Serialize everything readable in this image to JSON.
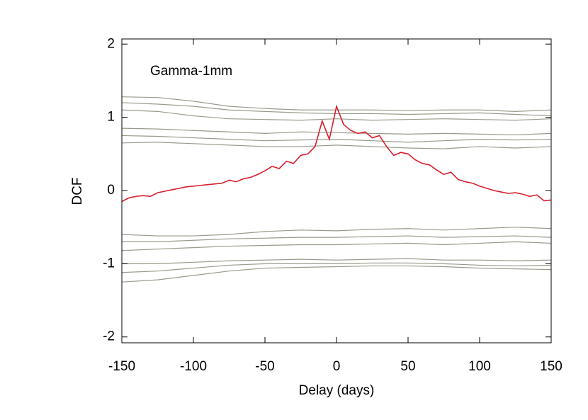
{
  "chart_data": {
    "type": "line",
    "annotation": "Gamma-1mm",
    "xlabel": "Delay (days)",
    "ylabel": "DCF",
    "xlim": [
      -150,
      150
    ],
    "ylim": [
      -2.08,
      2.07
    ],
    "xticks": [
      -150,
      -100,
      -50,
      0,
      50,
      100,
      150
    ],
    "yticks": [
      -2,
      -1,
      0,
      1,
      2
    ],
    "series": [
      {
        "color": "#9a9a8c",
        "x": [
          -150,
          -125,
          -100,
          -75,
          -50,
          -25,
          0,
          25,
          50,
          75,
          100,
          125,
          150
        ],
        "values": [
          1.28,
          1.27,
          1.22,
          1.15,
          1.12,
          1.1,
          1.1,
          1.1,
          1.09,
          1.1,
          1.1,
          1.08,
          1.1
        ]
      },
      {
        "color": "#9a9a8c",
        "x": [
          -150,
          -125,
          -100,
          -75,
          -50,
          -25,
          0,
          25,
          50,
          75,
          100,
          125,
          150
        ],
        "values": [
          1.2,
          1.18,
          1.15,
          1.1,
          1.08,
          1.06,
          1.05,
          1.05,
          1.04,
          1.05,
          1.06,
          1.04,
          1.02
        ]
      },
      {
        "color": "#9a9a8c",
        "x": [
          -150,
          -125,
          -100,
          -75,
          -50,
          -25,
          0,
          25,
          50,
          75,
          100,
          125,
          150
        ],
        "values": [
          1.1,
          1.08,
          1.02,
          0.98,
          0.97,
          0.96,
          0.98,
          0.96,
          0.97,
          0.98,
          0.97,
          0.96,
          0.98
        ]
      },
      {
        "color": "#9a9a8c",
        "x": [
          -150,
          -125,
          -100,
          -75,
          -50,
          -25,
          0,
          25,
          50,
          75,
          100,
          125,
          150
        ],
        "values": [
          0.85,
          0.84,
          0.82,
          0.8,
          0.78,
          0.8,
          0.79,
          0.78,
          0.77,
          0.78,
          0.77,
          0.76,
          0.78
        ]
      },
      {
        "color": "#9a9a8c",
        "x": [
          -150,
          -125,
          -100,
          -75,
          -50,
          -25,
          0,
          25,
          50,
          75,
          100,
          125,
          150
        ],
        "values": [
          0.75,
          0.74,
          0.72,
          0.7,
          0.68,
          0.69,
          0.7,
          0.68,
          0.66,
          0.68,
          0.7,
          0.69,
          0.7
        ]
      },
      {
        "color": "#9a9a8c",
        "x": [
          -150,
          -125,
          -100,
          -75,
          -50,
          -25,
          0,
          25,
          50,
          75,
          100,
          125,
          150
        ],
        "values": [
          0.65,
          0.66,
          0.64,
          0.62,
          0.6,
          0.6,
          0.62,
          0.6,
          0.58,
          0.57,
          0.6,
          0.58,
          0.6
        ]
      },
      {
        "color": "#9a9a8c",
        "x": [
          -150,
          -125,
          -100,
          -75,
          -50,
          -25,
          0,
          25,
          50,
          75,
          100,
          125,
          150
        ],
        "values": [
          -0.6,
          -0.62,
          -0.62,
          -0.6,
          -0.56,
          -0.54,
          -0.55,
          -0.53,
          -0.52,
          -0.54,
          -0.52,
          -0.5,
          -0.52
        ]
      },
      {
        "color": "#9a9a8c",
        "x": [
          -150,
          -125,
          -100,
          -75,
          -50,
          -25,
          0,
          25,
          50,
          75,
          100,
          125,
          150
        ],
        "values": [
          -0.7,
          -0.7,
          -0.68,
          -0.66,
          -0.65,
          -0.64,
          -0.64,
          -0.63,
          -0.62,
          -0.64,
          -0.63,
          -0.62,
          -0.64
        ]
      },
      {
        "color": "#9a9a8c",
        "x": [
          -150,
          -125,
          -100,
          -75,
          -50,
          -25,
          0,
          25,
          50,
          75,
          100,
          125,
          150
        ],
        "values": [
          -0.82,
          -0.8,
          -0.78,
          -0.76,
          -0.75,
          -0.74,
          -0.74,
          -0.73,
          -0.72,
          -0.74,
          -0.72,
          -0.7,
          -0.72
        ]
      },
      {
        "color": "#9a9a8c",
        "x": [
          -150,
          -125,
          -100,
          -75,
          -50,
          -25,
          0,
          25,
          50,
          75,
          100,
          125,
          150
        ],
        "values": [
          -1.0,
          -1.0,
          -0.98,
          -0.96,
          -0.95,
          -0.94,
          -0.95,
          -0.94,
          -0.93,
          -0.95,
          -0.95,
          -0.96,
          -0.95
        ]
      },
      {
        "color": "#9a9a8c",
        "x": [
          -150,
          -125,
          -100,
          -75,
          -50,
          -25,
          0,
          25,
          50,
          75,
          100,
          125,
          150
        ],
        "values": [
          -1.12,
          -1.1,
          -1.06,
          -1.02,
          -1.0,
          -1.0,
          -1.0,
          -0.99,
          -0.99,
          -1.0,
          -1.02,
          -1.03,
          -1.02
        ]
      },
      {
        "color": "#9a9a8c",
        "x": [
          -150,
          -125,
          -100,
          -75,
          -50,
          -25,
          0,
          25,
          50,
          75,
          100,
          125,
          150
        ],
        "values": [
          -1.25,
          -1.22,
          -1.16,
          -1.1,
          -1.06,
          -1.05,
          -1.04,
          -1.03,
          -1.03,
          -1.04,
          -1.06,
          -1.07,
          -1.08
        ]
      },
      {
        "color": "#d81e2c",
        "x": [
          -150,
          -145,
          -140,
          -135,
          -130,
          -125,
          -120,
          -115,
          -110,
          -105,
          -100,
          -95,
          -90,
          -85,
          -80,
          -75,
          -70,
          -65,
          -60,
          -55,
          -50,
          -45,
          -40,
          -35,
          -30,
          -25,
          -20,
          -15,
          -10,
          -5,
          0,
          5,
          10,
          15,
          20,
          25,
          30,
          35,
          40,
          45,
          50,
          55,
          60,
          65,
          70,
          75,
          80,
          85,
          90,
          95,
          100,
          105,
          110,
          115,
          120,
          125,
          130,
          135,
          140,
          145,
          150
        ],
        "values": [
          -0.15,
          -0.1,
          -0.08,
          -0.07,
          -0.08,
          -0.03,
          -0.01,
          0.01,
          0.03,
          0.05,
          0.06,
          0.07,
          0.08,
          0.09,
          0.1,
          0.14,
          0.12,
          0.16,
          0.18,
          0.22,
          0.27,
          0.33,
          0.3,
          0.4,
          0.37,
          0.48,
          0.5,
          0.6,
          0.95,
          0.7,
          1.15,
          0.9,
          0.82,
          0.78,
          0.8,
          0.72,
          0.75,
          0.6,
          0.48,
          0.52,
          0.5,
          0.42,
          0.37,
          0.35,
          0.28,
          0.22,
          0.25,
          0.15,
          0.12,
          0.1,
          0.06,
          0.03,
          0.0,
          -0.02,
          -0.04,
          -0.03,
          -0.05,
          -0.08,
          -0.06,
          -0.14,
          -0.13
        ]
      }
    ]
  }
}
